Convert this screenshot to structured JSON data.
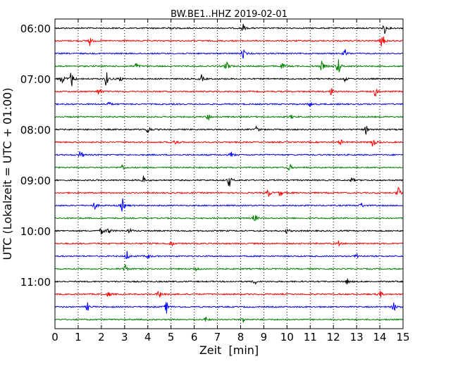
{
  "chart_data": {
    "type": "line",
    "title": "BW.BE1..HHZ 2019-02-01",
    "xlabel": "Zeit  [min]",
    "ylabel": "UTC (Lokalzeit = UTC + 01:00)",
    "xlim": [
      0,
      15
    ],
    "x_ticks": [
      "0",
      "1",
      "2",
      "3",
      "4",
      "5",
      "6",
      "7",
      "8",
      "9",
      "10",
      "11",
      "12",
      "13",
      "14",
      "15"
    ],
    "y_tick_labels": [
      "06:00",
      "07:00",
      "08:00",
      "09:00",
      "10:00",
      "11:00"
    ],
    "grid": "vertical-dotted",
    "trace_colors": [
      "#000000",
      "#ff0000",
      "#0000ff",
      "#008000"
    ],
    "traces": [
      {
        "time": "06:00",
        "events": [
          [
            4.9,
            3
          ],
          [
            8.1,
            4
          ],
          [
            14.2,
            5
          ]
        ]
      },
      {
        "time": "06:15",
        "events": [
          [
            1.5,
            5
          ],
          [
            14.1,
            9
          ]
        ]
      },
      {
        "time": "06:30",
        "events": [
          [
            8.1,
            5
          ],
          [
            12.5,
            4
          ]
        ]
      },
      {
        "time": "06:45",
        "events": [
          [
            3.5,
            4
          ],
          [
            7.4,
            7
          ],
          [
            9.8,
            3
          ],
          [
            11.5,
            6
          ],
          [
            12.2,
            10
          ]
        ]
      },
      {
        "time": "07:00",
        "events": [
          [
            0.3,
            6
          ],
          [
            0.7,
            9
          ],
          [
            2.2,
            8
          ],
          [
            2.8,
            3
          ],
          [
            6.3,
            4
          ],
          [
            12.5,
            3
          ]
        ]
      },
      {
        "time": "07:15",
        "events": [
          [
            1.9,
            4
          ],
          [
            11.9,
            4
          ],
          [
            13.8,
            5
          ]
        ]
      },
      {
        "time": "07:30",
        "events": [
          [
            2.3,
            3
          ],
          [
            11.0,
            3
          ]
        ]
      },
      {
        "time": "07:45",
        "events": [
          [
            6.6,
            4
          ],
          [
            10.2,
            2
          ]
        ]
      },
      {
        "time": "08:00",
        "events": [
          [
            4.0,
            5
          ],
          [
            8.7,
            4
          ],
          [
            13.4,
            4
          ]
        ]
      },
      {
        "time": "08:15",
        "events": [
          [
            5.2,
            4
          ],
          [
            12.3,
            3
          ],
          [
            13.7,
            6
          ]
        ]
      },
      {
        "time": "08:30",
        "events": [
          [
            1.1,
            5
          ],
          [
            7.6,
            3
          ]
        ]
      },
      {
        "time": "08:45",
        "events": [
          [
            2.9,
            4
          ],
          [
            10.1,
            4
          ]
        ]
      },
      {
        "time": "09:00",
        "events": [
          [
            3.8,
            4
          ],
          [
            7.5,
            7
          ],
          [
            12.8,
            3
          ]
        ]
      },
      {
        "time": "09:15",
        "events": [
          [
            9.2,
            4
          ],
          [
            9.7,
            4
          ],
          [
            14.8,
            8
          ]
        ]
      },
      {
        "time": "09:30",
        "events": [
          [
            1.7,
            4
          ],
          [
            2.9,
            7
          ],
          [
            13.2,
            3
          ]
        ]
      },
      {
        "time": "09:45",
        "events": [
          [
            8.6,
            5
          ]
        ]
      },
      {
        "time": "10:00",
        "events": [
          [
            2.0,
            4
          ],
          [
            2.3,
            4
          ],
          [
            3.2,
            3
          ],
          [
            10.0,
            3
          ]
        ]
      },
      {
        "time": "10:15",
        "events": [
          [
            5.0,
            3
          ],
          [
            12.2,
            3
          ]
        ]
      },
      {
        "time": "10:30",
        "events": [
          [
            3.1,
            5
          ],
          [
            4.0,
            3
          ],
          [
            13.0,
            3
          ]
        ]
      },
      {
        "time": "10:45",
        "events": [
          [
            3.0,
            6
          ],
          [
            6.1,
            3
          ]
        ]
      },
      {
        "time": "11:00",
        "events": [
          [
            8.6,
            3
          ],
          [
            12.6,
            3
          ]
        ]
      },
      {
        "time": "11:15",
        "events": [
          [
            2.3,
            3
          ],
          [
            4.5,
            5
          ],
          [
            14.0,
            4
          ]
        ]
      },
      {
        "time": "11:30",
        "events": [
          [
            1.4,
            4
          ],
          [
            4.8,
            6
          ],
          [
            14.6,
            5
          ]
        ]
      },
      {
        "time": "11:45",
        "events": [
          [
            6.5,
            3
          ],
          [
            8.1,
            3
          ]
        ]
      }
    ]
  }
}
